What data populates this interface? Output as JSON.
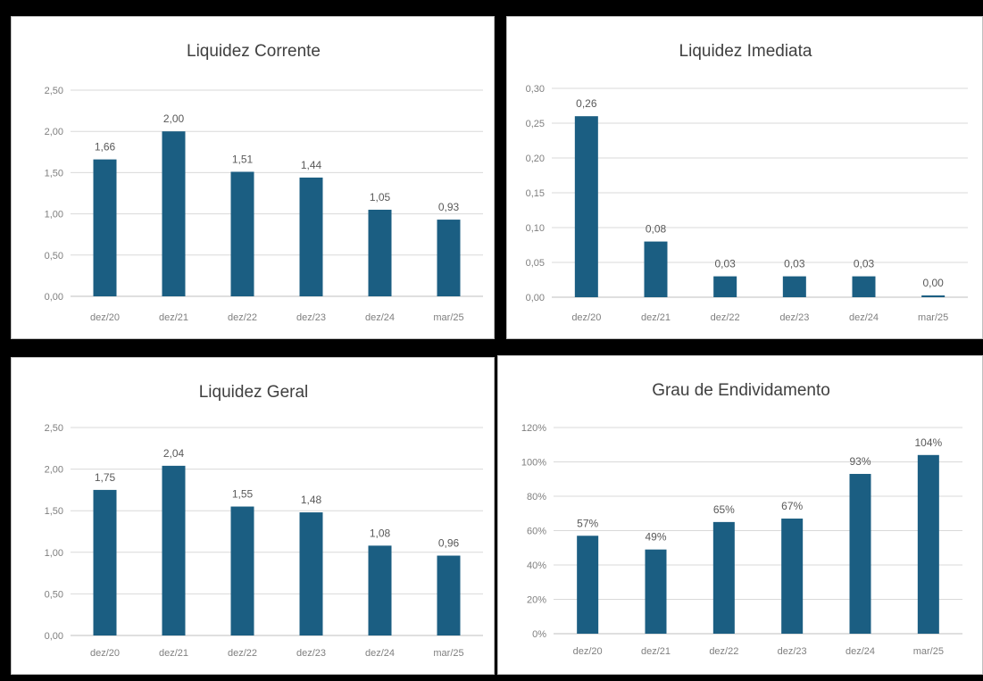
{
  "colors": {
    "bar": "#1b5e82",
    "frame": "#000000",
    "panel": "#ffffff"
  },
  "chart_data": [
    {
      "type": "bar",
      "title": "Liquidez Corrente",
      "categories": [
        "dez/20",
        "dez/21",
        "dez/22",
        "dez/23",
        "dez/24",
        "mar/25"
      ],
      "values": [
        1.66,
        2.0,
        1.51,
        1.44,
        1.05,
        0.93
      ],
      "value_labels": [
        "1,66",
        "2,00",
        "1,51",
        "1,44",
        "1,05",
        "0,93"
      ],
      "yticks": [
        "0,00",
        "0,50",
        "1,00",
        "1,50",
        "2,00",
        "2,50"
      ],
      "ylim": [
        0,
        2.5
      ],
      "grid": true
    },
    {
      "type": "bar",
      "title": "Liquidez Imediata",
      "categories": [
        "dez/20",
        "dez/21",
        "dez/22",
        "dez/23",
        "dez/24",
        "mar/25"
      ],
      "values": [
        0.26,
        0.08,
        0.03,
        0.03,
        0.03,
        0.0
      ],
      "value_labels": [
        "0,26",
        "0,08",
        "0,03",
        "0,03",
        "0,03",
        "0,00"
      ],
      "yticks": [
        "0,00",
        "0,05",
        "0,10",
        "0,15",
        "0,20",
        "0,25",
        "0,30"
      ],
      "ylim": [
        0,
        0.3
      ],
      "grid": true
    },
    {
      "type": "bar",
      "title": "Liquidez Geral",
      "categories": [
        "dez/20",
        "dez/21",
        "dez/22",
        "dez/23",
        "dez/24",
        "mar/25"
      ],
      "values": [
        1.75,
        2.04,
        1.55,
        1.48,
        1.08,
        0.96
      ],
      "value_labels": [
        "1,75",
        "2,04",
        "1,55",
        "1,48",
        "1,08",
        "0,96"
      ],
      "yticks": [
        "0,00",
        "0,50",
        "1,00",
        "1,50",
        "2,00",
        "2,50"
      ],
      "ylim": [
        0,
        2.5
      ],
      "grid": true
    },
    {
      "type": "bar",
      "title": "Grau de Endividamento",
      "categories": [
        "dez/20",
        "dez/21",
        "dez/22",
        "dez/23",
        "dez/24",
        "mar/25"
      ],
      "values": [
        57,
        49,
        65,
        67,
        93,
        104
      ],
      "value_labels": [
        "57%",
        "49%",
        "65%",
        "67%",
        "93%",
        "104%"
      ],
      "yticks": [
        "0%",
        "20%",
        "40%",
        "60%",
        "80%",
        "100%",
        "120%"
      ],
      "ylim": [
        0,
        120
      ],
      "grid": true
    }
  ]
}
